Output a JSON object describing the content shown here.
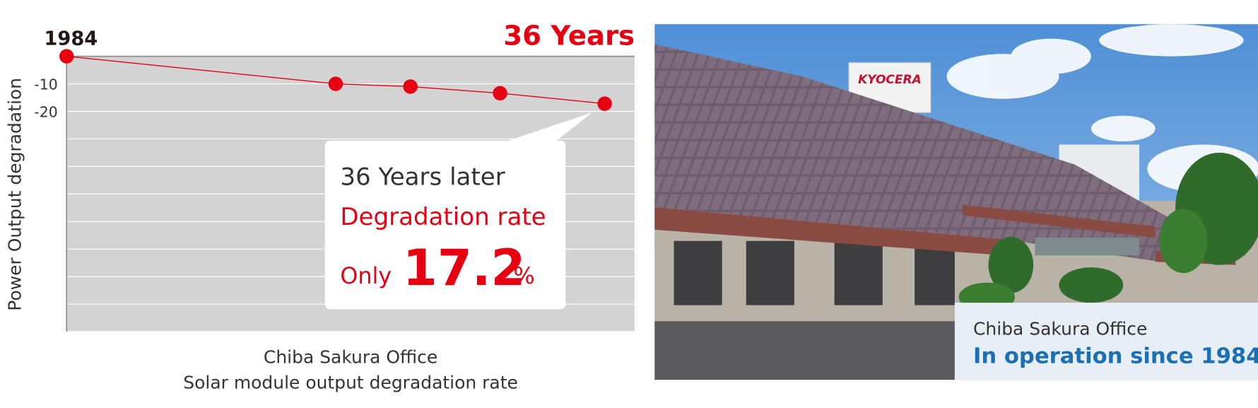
{
  "chart_data": {
    "type": "line",
    "annotations": {
      "start": "1984",
      "end": "36 Years"
    },
    "ylabel": "Power Output degradation",
    "caption": [
      "Chiba Sakura Office",
      "Solar module output degradation rate"
    ],
    "x": [
      0,
      18,
      23,
      29,
      36
    ],
    "xlim": [
      0,
      38
    ],
    "series": [
      {
        "color": "#e60012",
        "values": [
          0,
          -10,
          -11,
          -13.4,
          -17.2
        ]
      }
    ],
    "ylim": [
      -100,
      0
    ],
    "yticks": [
      -10,
      -20
    ],
    "grid": [
      0,
      -10,
      -20,
      -30,
      -40,
      -50,
      -60,
      -70,
      -80,
      -90,
      -100
    ],
    "callout": {
      "line1": "36 Years later",
      "line2": "Degradation rate",
      "prefix": "Only",
      "value": "17.2",
      "unit": "%"
    }
  },
  "photo": {
    "sign": "KYOCERA",
    "caption": {
      "place": "Chiba Sakura Office",
      "since": "In operation since 1984"
    }
  }
}
